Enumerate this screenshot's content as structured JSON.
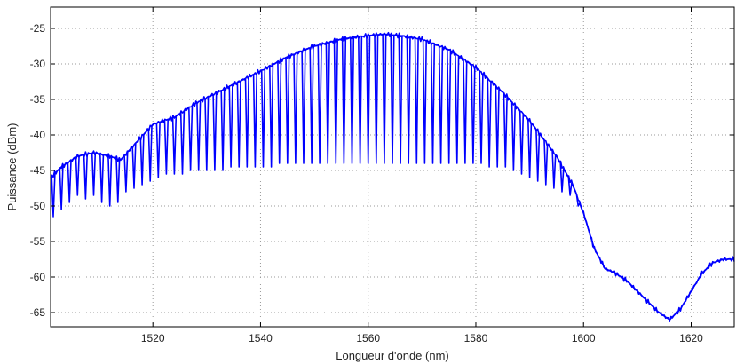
{
  "chart_data": {
    "type": "line",
    "title": "",
    "xlabel": "Longueur d'onde (nm)",
    "ylabel": "Puissance (dBm)",
    "xlim": [
      1501,
      1628
    ],
    "ylim": [
      -67,
      -22
    ],
    "xticks": [
      1520,
      1540,
      1560,
      1580,
      1600,
      1620
    ],
    "yticks": [
      -25,
      -30,
      -35,
      -40,
      -45,
      -50,
      -55,
      -60,
      -65
    ],
    "grid": true,
    "series": [
      {
        "color": "#0000ff",
        "envelope": {
          "x": [
            1501,
            1503,
            1506,
            1509,
            1512,
            1514,
            1517,
            1520,
            1524,
            1528,
            1532,
            1536,
            1540,
            1545,
            1550,
            1555,
            1560,
            1563,
            1566,
            1570,
            1575,
            1580,
            1585,
            1590,
            1595,
            1598,
            1600,
            1602,
            1604,
            1606,
            1608,
            1610,
            1612,
            1614,
            1616,
            1618,
            1620,
            1622,
            1624,
            1626,
            1628
          ],
          "y": [
            -46,
            -44.5,
            -43,
            -42.5,
            -43,
            -43.5,
            -41,
            -38.5,
            -37.5,
            -35.5,
            -34,
            -32.5,
            -31,
            -29,
            -27.5,
            -26.5,
            -26,
            -25.8,
            -26,
            -26.5,
            -28,
            -30.5,
            -34,
            -38,
            -43,
            -47,
            -51,
            -56,
            -58.8,
            -59.5,
            -60.5,
            -62,
            -63.5,
            -65,
            -66,
            -64.5,
            -62,
            -59.5,
            -58,
            -57.5,
            -57.5
          ]
        },
        "notches": {
          "x": [
            1501.5,
            1503,
            1504.5,
            1506,
            1507.5,
            1509,
            1510.5,
            1512,
            1513.5,
            1515,
            1516.5,
            1518,
            1519.5,
            1521,
            1522.5,
            1524,
            1525.5,
            1527,
            1528.5,
            1530,
            1531.5,
            1533,
            1534.5,
            1536,
            1537.5,
            1539,
            1540.5,
            1542,
            1543.5,
            1545,
            1546.5,
            1548,
            1549.5,
            1551,
            1552.5,
            1554,
            1555.5,
            1557,
            1558.5,
            1560,
            1561.5,
            1563,
            1564.5,
            1566,
            1567.5,
            1569,
            1570.5,
            1572,
            1573.5,
            1575,
            1576.5,
            1578,
            1579.5,
            1581,
            1582.5,
            1584,
            1585.5,
            1587,
            1588.5,
            1590,
            1591.5,
            1593,
            1594.5,
            1596,
            1597.5,
            1599
          ],
          "y": [
            -51.5,
            -50.5,
            -49.5,
            -48.5,
            -49,
            -48.5,
            -49.5,
            -50,
            -49.5,
            -48,
            -47.5,
            -47,
            -46.5,
            -46,
            -45.5,
            -45.5,
            -45.5,
            -45,
            -45,
            -45,
            -45,
            -45,
            -44.5,
            -44.5,
            -44.5,
            -44.5,
            -44.5,
            -44.5,
            -44,
            -44,
            -44,
            -44,
            -44,
            -44,
            -44,
            -44,
            -44,
            -44,
            -44,
            -44,
            -44,
            -44,
            -44,
            -44,
            -44,
            -44,
            -44,
            -44,
            -44,
            -44,
            -44,
            -44,
            -44,
            -44,
            -44.5,
            -44.5,
            -44.5,
            -45,
            -45.5,
            -46,
            -46.5,
            -47,
            -47.5,
            -48,
            -48.5,
            -50
          ]
        }
      }
    ]
  }
}
